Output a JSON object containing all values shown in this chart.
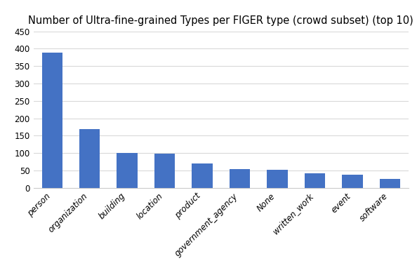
{
  "categories": [
    "person",
    "organization",
    "building",
    "location",
    "product",
    "government_agency",
    "None",
    "written_work",
    "event",
    "software"
  ],
  "values": [
    388,
    170,
    101,
    98,
    70,
    55,
    52,
    42,
    37,
    25
  ],
  "bar_color": "#4472C4",
  "title": "Number of Ultra-fine-grained Types per FIGER type (crowd subset) (top 10)",
  "title_fontsize": 10.5,
  "ylim": [
    0,
    450
  ],
  "yticks": [
    0,
    50,
    100,
    150,
    200,
    250,
    300,
    350,
    400,
    450
  ],
  "background_color": "#ffffff",
  "grid_color": "#d9d9d9",
  "tick_label_fontsize": 8.5,
  "bar_width": 0.55,
  "figsize": [
    5.94,
    3.72
  ],
  "dpi": 100
}
